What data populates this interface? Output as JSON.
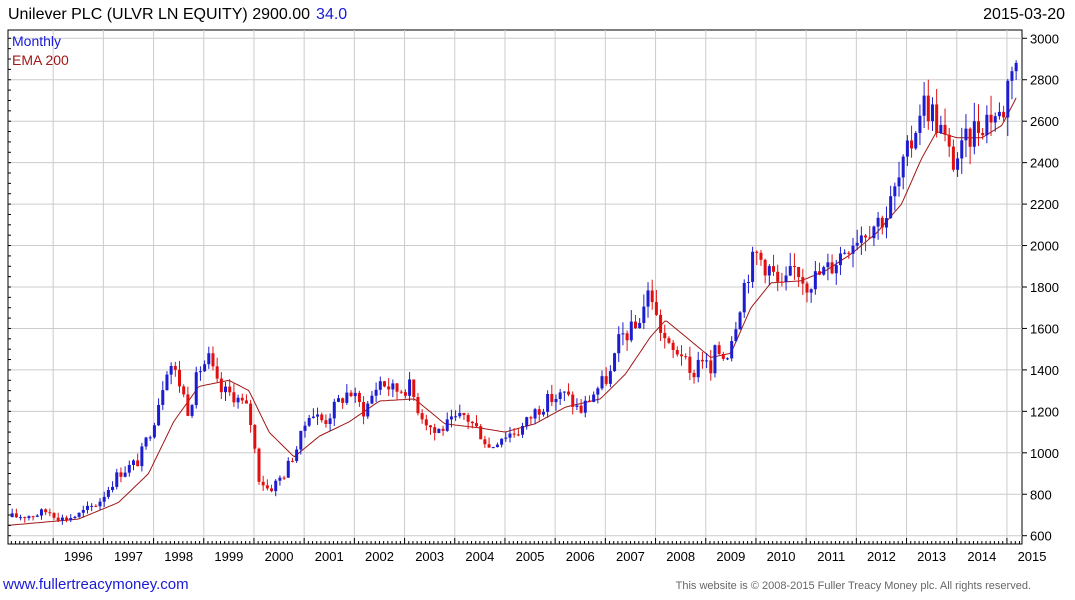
{
  "header": {
    "title": "Unilever PLC (ULVR LN EQUITY) 2900.00",
    "change": "34.0",
    "date": "2015-03-20"
  },
  "footer": {
    "left": "www.fullertreacymoney.com",
    "right": "This website is © 2008-2015 Fuller Treacy Money plc. All rights reserved."
  },
  "chart_data": {
    "type": "candlestick",
    "legend": [
      "Monthly",
      "EMA 200"
    ],
    "legend_placement": "top-left",
    "colors": {
      "up": "#1c1cd0",
      "down": "#e01010",
      "ema": "#a01818",
      "grid": "#cccccc",
      "legend_monthly": "#1a1ad6",
      "legend_ema": "#a01818"
    },
    "ylim": [
      560,
      3040
    ],
    "y_ticks": [
      600,
      800,
      1000,
      1200,
      1400,
      1600,
      1800,
      2000,
      2200,
      2400,
      2600,
      2800,
      3000
    ],
    "y_axis_side": "right",
    "x_range_years": [
      1995.1,
      2015.3
    ],
    "x_ticks": [
      {
        "label": "1996",
        "year": 1996.0
      },
      {
        "label": "1997",
        "year": 1997.0
      },
      {
        "label": "1998",
        "year": 1998.0
      },
      {
        "label": "1999",
        "year": 1999.0
      },
      {
        "label": "2000",
        "year": 2000.0
      },
      {
        "label": "2001",
        "year": 2001.0
      },
      {
        "label": "2002",
        "year": 2002.0
      },
      {
        "label": "2003",
        "year": 2003.0
      },
      {
        "label": "2004",
        "year": 2004.0
      },
      {
        "label": "2005",
        "year": 2005.0
      },
      {
        "label": "2006",
        "year": 2006.0
      },
      {
        "label": "2007",
        "year": 2007.0
      },
      {
        "label": "2008",
        "year": 2008.0
      },
      {
        "label": "2009",
        "year": 2009.0
      },
      {
        "label": "2010",
        "year": 2010.0
      },
      {
        "label": "2011",
        "year": 2011.0
      },
      {
        "label": "2012",
        "year": 2012.0
      },
      {
        "label": "2013",
        "year": 2013.0
      },
      {
        "label": "2014",
        "year": 2014.0
      },
      {
        "label": "2015",
        "year": 2015.0
      }
    ],
    "grid": true,
    "close_anchors": [
      [
        1995.1,
        690
      ],
      [
        1995.6,
        700
      ],
      [
        1995.9,
        720
      ],
      [
        1996.2,
        680
      ],
      [
        1996.5,
        700
      ],
      [
        1996.9,
        760
      ],
      [
        1997.3,
        900
      ],
      [
        1997.7,
        960
      ],
      [
        1998.0,
        1150
      ],
      [
        1998.3,
        1450
      ],
      [
        1998.5,
        1350
      ],
      [
        1998.7,
        1200
      ],
      [
        1998.9,
        1400
      ],
      [
        1999.1,
        1450
      ],
      [
        1999.3,
        1300
      ],
      [
        1999.6,
        1280
      ],
      [
        1999.9,
        1200
      ],
      [
        2000.1,
        880
      ],
      [
        2000.3,
        820
      ],
      [
        2000.6,
        900
      ],
      [
        2000.9,
        1050
      ],
      [
        2001.1,
        1200
      ],
      [
        2001.4,
        1150
      ],
      [
        2001.7,
        1250
      ],
      [
        2001.9,
        1300
      ],
      [
        2002.2,
        1200
      ],
      [
        2002.5,
        1350
      ],
      [
        2002.8,
        1300
      ],
      [
        2003.1,
        1320
      ],
      [
        2003.3,
        1200
      ],
      [
        2003.6,
        1100
      ],
      [
        2003.9,
        1140
      ],
      [
        2004.2,
        1180
      ],
      [
        2004.5,
        1100
      ],
      [
        2004.7,
        1020
      ],
      [
        2004.9,
        1080
      ],
      [
        2005.3,
        1110
      ],
      [
        2005.6,
        1200
      ],
      [
        2005.9,
        1260
      ],
      [
        2006.2,
        1280
      ],
      [
        2006.5,
        1200
      ],
      [
        2006.8,
        1300
      ],
      [
        2007.1,
        1380
      ],
      [
        2007.3,
        1560
      ],
      [
        2007.6,
        1600
      ],
      [
        2007.9,
        1800
      ],
      [
        2008.0,
        1660
      ],
      [
        2008.3,
        1480
      ],
      [
        2008.5,
        1500
      ],
      [
        2008.7,
        1350
      ],
      [
        2008.9,
        1480
      ],
      [
        2009.1,
        1380
      ],
      [
        2009.2,
        1500
      ],
      [
        2009.4,
        1460
      ],
      [
        2009.6,
        1640
      ],
      [
        2009.8,
        1850
      ],
      [
        2010.0,
        1960
      ],
      [
        2010.3,
        1880
      ],
      [
        2010.5,
        1780
      ],
      [
        2010.8,
        1900
      ],
      [
        2011.0,
        1820
      ],
      [
        2011.2,
        1850
      ],
      [
        2011.5,
        1900
      ],
      [
        2011.8,
        2000
      ],
      [
        2012.0,
        2050
      ],
      [
        2012.3,
        2100
      ],
      [
        2012.6,
        2150
      ],
      [
        2012.9,
        2350
      ],
      [
        2013.1,
        2500
      ],
      [
        2013.3,
        2700
      ],
      [
        2013.5,
        2650
      ],
      [
        2013.7,
        2550
      ],
      [
        2013.9,
        2400
      ],
      [
        2014.1,
        2450
      ],
      [
        2014.3,
        2550
      ],
      [
        2014.5,
        2600
      ],
      [
        2014.7,
        2640
      ],
      [
        2014.9,
        2620
      ],
      [
        2015.1,
        2900
      ],
      [
        2015.2,
        2900
      ]
    ],
    "ema_anchors": [
      [
        1995.1,
        650
      ],
      [
        1996.5,
        680
      ],
      [
        1997.3,
        760
      ],
      [
        1997.9,
        900
      ],
      [
        1998.4,
        1150
      ],
      [
        1998.9,
        1320
      ],
      [
        1999.5,
        1350
      ],
      [
        1999.9,
        1300
      ],
      [
        2000.3,
        1100
      ],
      [
        2000.8,
        980
      ],
      [
        2001.3,
        1080
      ],
      [
        2001.9,
        1150
      ],
      [
        2002.5,
        1250
      ],
      [
        2003.2,
        1260
      ],
      [
        2003.8,
        1140
      ],
      [
        2004.5,
        1120
      ],
      [
        2005.0,
        1100
      ],
      [
        2005.6,
        1140
      ],
      [
        2006.2,
        1220
      ],
      [
        2006.9,
        1260
      ],
      [
        2007.4,
        1380
      ],
      [
        2007.9,
        1560
      ],
      [
        2008.2,
        1640
      ],
      [
        2008.6,
        1560
      ],
      [
        2009.1,
        1460
      ],
      [
        2009.5,
        1480
      ],
      [
        2009.9,
        1700
      ],
      [
        2010.3,
        1820
      ],
      [
        2010.9,
        1830
      ],
      [
        2011.4,
        1880
      ],
      [
        2011.9,
        1960
      ],
      [
        2012.4,
        2060
      ],
      [
        2012.9,
        2200
      ],
      [
        2013.3,
        2420
      ],
      [
        2013.6,
        2550
      ],
      [
        2014.0,
        2520
      ],
      [
        2014.5,
        2520
      ],
      [
        2014.9,
        2580
      ],
      [
        2015.2,
        2720
      ]
    ]
  }
}
